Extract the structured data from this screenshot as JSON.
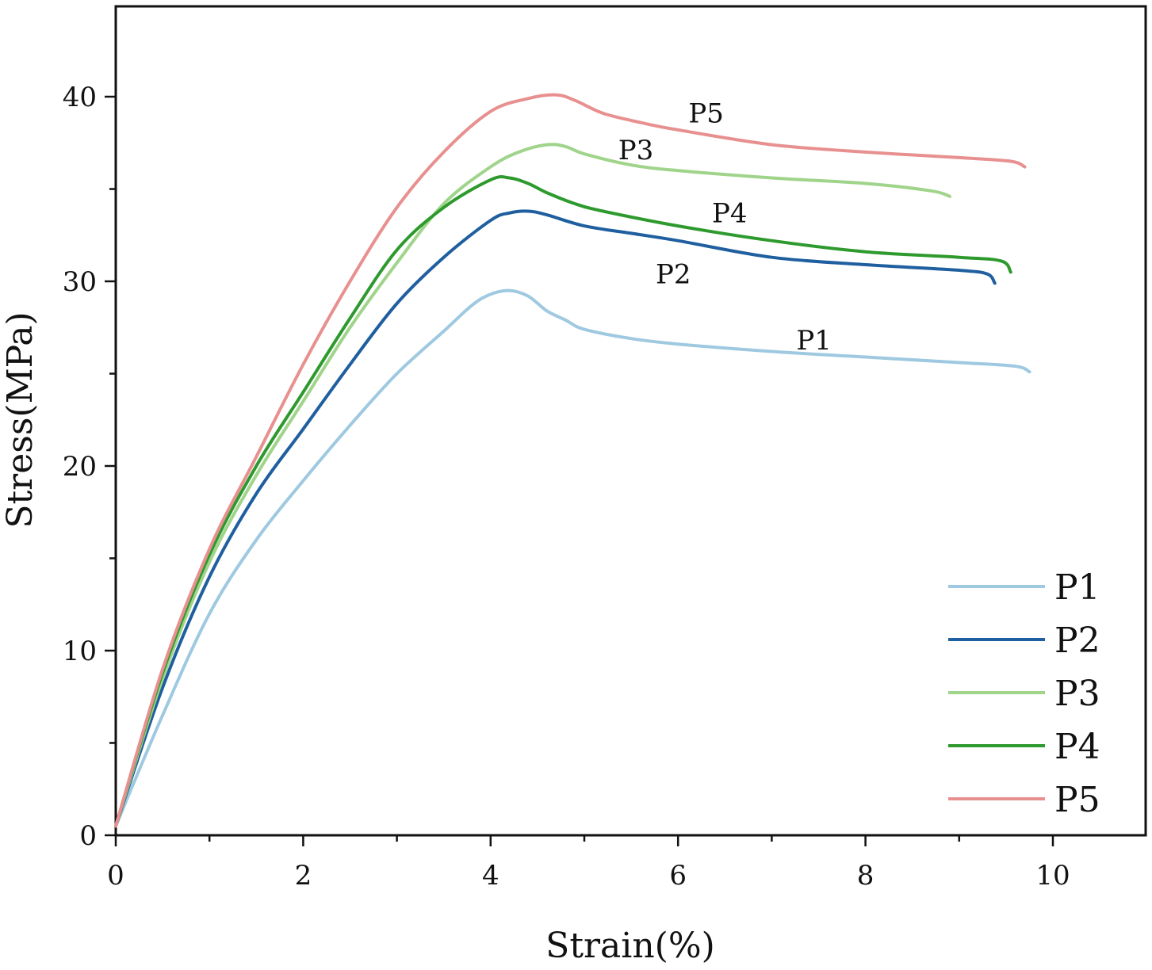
{
  "chart_data": {
    "type": "line",
    "title": "",
    "xlabel": "Strain(%)",
    "ylabel": "Stress(MPa)",
    "xlim": [
      0,
      11
    ],
    "ylim": [
      0,
      45
    ],
    "xticks": [
      0,
      2,
      4,
      6,
      8,
      10
    ],
    "xtick_labels": [
      "0",
      "2",
      "4",
      "6",
      "8",
      "10"
    ],
    "yticks": [
      0,
      10,
      20,
      30,
      40
    ],
    "ytick_labels": [
      "0",
      "10",
      "20",
      "30",
      "40"
    ],
    "grid": false,
    "legend_position": "bottom-right",
    "series": [
      {
        "name": "P1",
        "color": "#9ec9e0",
        "points": [
          [
            0,
            0.5
          ],
          [
            0.5,
            6.5
          ],
          [
            1,
            12
          ],
          [
            1.5,
            16
          ],
          [
            2,
            19.2
          ],
          [
            2.5,
            22.2
          ],
          [
            3,
            25
          ],
          [
            3.5,
            27.3
          ],
          [
            3.8,
            28.7
          ],
          [
            4,
            29.3
          ],
          [
            4.2,
            29.5
          ],
          [
            4.4,
            29.2
          ],
          [
            4.6,
            28.4
          ],
          [
            4.8,
            27.9
          ],
          [
            5,
            27.4
          ],
          [
            5.5,
            26.9
          ],
          [
            6,
            26.6
          ],
          [
            7,
            26.2
          ],
          [
            8,
            25.9
          ],
          [
            9,
            25.6
          ],
          [
            9.6,
            25.4
          ],
          [
            9.75,
            25.1
          ]
        ]
      },
      {
        "name": "P2",
        "color": "#1f5f9f",
        "points": [
          [
            0,
            0.5
          ],
          [
            0.5,
            8
          ],
          [
            1,
            14
          ],
          [
            1.5,
            18.5
          ],
          [
            2,
            22
          ],
          [
            2.5,
            25.5
          ],
          [
            3,
            28.8
          ],
          [
            3.5,
            31.3
          ],
          [
            4,
            33.3
          ],
          [
            4.2,
            33.7
          ],
          [
            4.4,
            33.8
          ],
          [
            4.6,
            33.6
          ],
          [
            5,
            33
          ],
          [
            5.5,
            32.6
          ],
          [
            6,
            32.2
          ],
          [
            7,
            31.3
          ],
          [
            8,
            30.9
          ],
          [
            9,
            30.6
          ],
          [
            9.3,
            30.4
          ],
          [
            9.38,
            29.9
          ]
        ]
      },
      {
        "name": "P3",
        "color": "#9fd48a",
        "points": [
          [
            0,
            0.5
          ],
          [
            0.5,
            8.5
          ],
          [
            1,
            14.8
          ],
          [
            1.5,
            19.5
          ],
          [
            2,
            23.5
          ],
          [
            2.5,
            27.5
          ],
          [
            3,
            31
          ],
          [
            3.5,
            34.2
          ],
          [
            4,
            36.2
          ],
          [
            4.3,
            37
          ],
          [
            4.6,
            37.4
          ],
          [
            4.8,
            37.3
          ],
          [
            5,
            36.9
          ],
          [
            5.5,
            36.3
          ],
          [
            6,
            36
          ],
          [
            7,
            35.6
          ],
          [
            8,
            35.3
          ],
          [
            8.7,
            34.9
          ],
          [
            8.9,
            34.6
          ]
        ]
      },
      {
        "name": "P4",
        "color": "#2e9a2e",
        "points": [
          [
            0,
            0.5
          ],
          [
            0.5,
            8.8
          ],
          [
            1,
            15.2
          ],
          [
            1.5,
            20
          ],
          [
            2,
            24
          ],
          [
            2.5,
            28
          ],
          [
            3,
            31.7
          ],
          [
            3.5,
            34
          ],
          [
            4,
            35.5
          ],
          [
            4.2,
            35.6
          ],
          [
            4.4,
            35.3
          ],
          [
            4.6,
            34.8
          ],
          [
            4.9,
            34.2
          ],
          [
            5.2,
            33.8
          ],
          [
            6,
            33
          ],
          [
            7,
            32.2
          ],
          [
            8,
            31.6
          ],
          [
            9,
            31.3
          ],
          [
            9.45,
            31.1
          ],
          [
            9.55,
            30.5
          ]
        ]
      },
      {
        "name": "P5",
        "color": "#e89090",
        "points": [
          [
            0,
            0.5
          ],
          [
            0.5,
            9
          ],
          [
            1,
            15.5
          ],
          [
            1.5,
            20.5
          ],
          [
            2,
            25.5
          ],
          [
            2.5,
            30
          ],
          [
            3,
            34
          ],
          [
            3.5,
            37
          ],
          [
            4,
            39.2
          ],
          [
            4.4,
            39.9
          ],
          [
            4.7,
            40.1
          ],
          [
            4.9,
            39.8
          ],
          [
            5.2,
            39.1
          ],
          [
            5.6,
            38.6
          ],
          [
            6,
            38.2
          ],
          [
            7,
            37.4
          ],
          [
            8,
            37
          ],
          [
            9,
            36.7
          ],
          [
            9.55,
            36.5
          ],
          [
            9.7,
            36.2
          ]
        ]
      }
    ],
    "annotations": [
      {
        "text": "P5",
        "x": 6.3,
        "y": 38.6
      },
      {
        "text": "P3",
        "x": 5.55,
        "y": 36.6
      },
      {
        "text": "P4",
        "x": 6.55,
        "y": 33.2
      },
      {
        "text": "P2",
        "x": 5.95,
        "y": 29.9
      },
      {
        "text": "P1",
        "x": 7.45,
        "y": 26.3
      }
    ]
  }
}
